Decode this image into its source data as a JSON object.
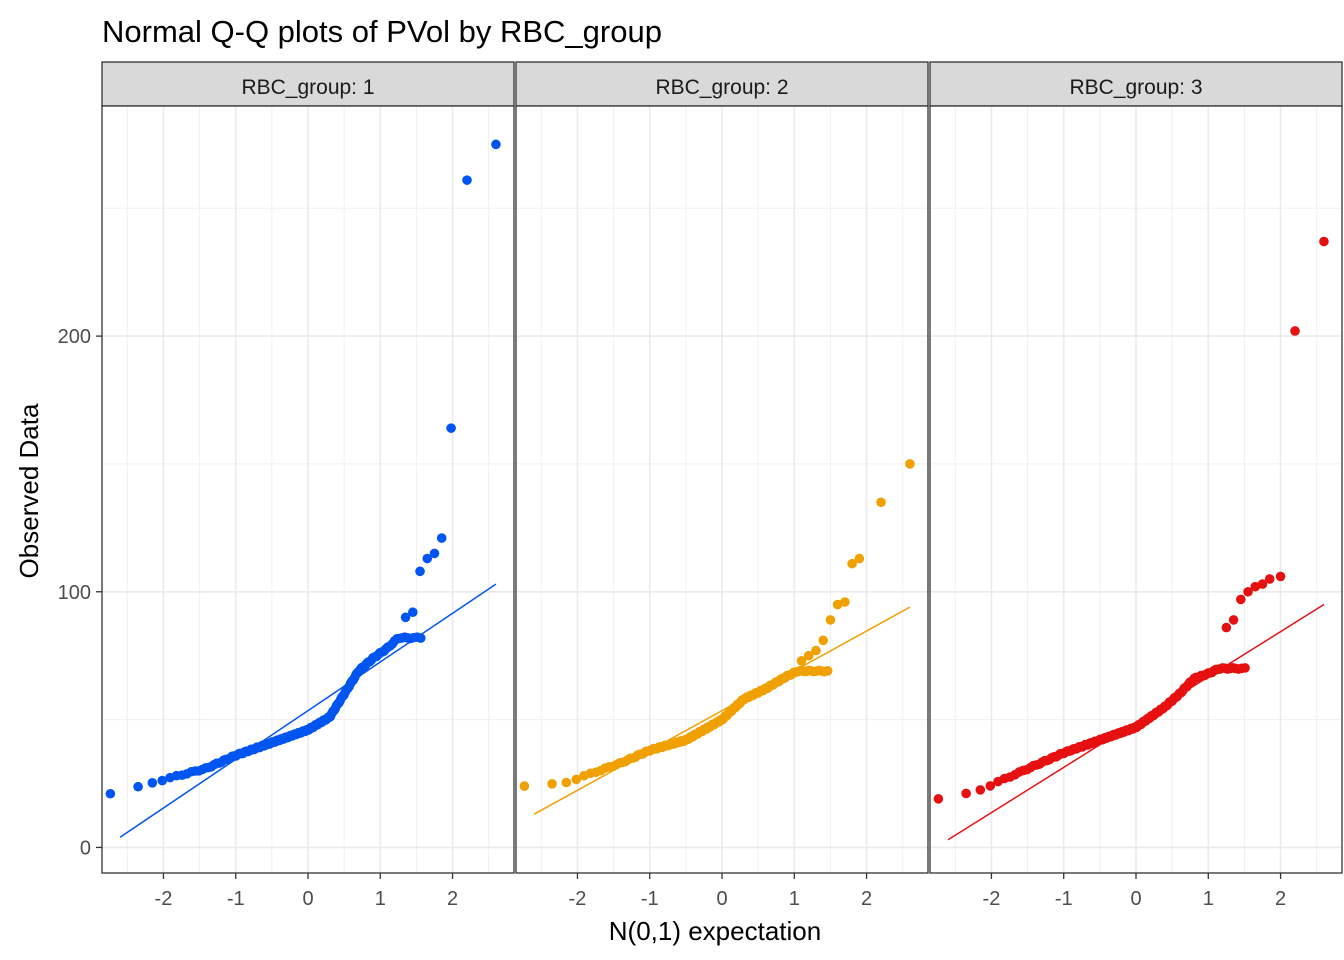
{
  "chart_data": {
    "type": "scatter",
    "title": "Normal Q-Q plots of PVol by RBC_group",
    "xlabel": "N(0,1) expectation",
    "ylabel": "Observed Data",
    "xlim": [
      -2.85,
      2.85
    ],
    "ylim": [
      -10,
      290
    ],
    "x_ticks": [
      -2,
      -1,
      0,
      1,
      2
    ],
    "x_tick_labels": [
      "-2",
      "-1",
      "0",
      "1",
      "2"
    ],
    "y_ticks": [
      0,
      100,
      200
    ],
    "y_tick_labels": [
      "0",
      "100",
      "200"
    ],
    "grid": true,
    "legend": "none",
    "facets": [
      {
        "strip_label": "RBC_group: 1",
        "color": "#0055f0",
        "n_points": 160,
        "ref_line": {
          "x": [
            -2.6,
            2.6
          ],
          "y": [
            4,
            103
          ]
        },
        "curve": [
          [
            -2.6,
            21
          ],
          [
            -2.2,
            25
          ],
          [
            -1.8,
            28
          ],
          [
            -1.4,
            31
          ],
          [
            -1.0,
            36
          ],
          [
            -0.5,
            41
          ],
          [
            0.0,
            46
          ],
          [
            0.3,
            51
          ],
          [
            0.5,
            60
          ],
          [
            0.7,
            69
          ],
          [
            0.9,
            74
          ],
          [
            1.1,
            78
          ],
          [
            1.25,
            82
          ]
        ],
        "extreme_points": [
          [
            1.35,
            90
          ],
          [
            1.45,
            92
          ],
          [
            1.55,
            108
          ],
          [
            1.65,
            113
          ],
          [
            1.75,
            115
          ],
          [
            1.85,
            121
          ],
          [
            1.98,
            164
          ],
          [
            2.2,
            261
          ],
          [
            2.6,
            275
          ]
        ]
      },
      {
        "strip_label": "RBC_group: 2",
        "color": "#f0a000",
        "n_points": 160,
        "ref_line": {
          "x": [
            -2.6,
            2.6
          ],
          "y": [
            13,
            94
          ]
        },
        "curve": [
          [
            -2.6,
            24
          ],
          [
            -2.2,
            25
          ],
          [
            -1.8,
            29
          ],
          [
            -1.4,
            33
          ],
          [
            -1.0,
            38
          ],
          [
            -0.5,
            42
          ],
          [
            0.0,
            50
          ],
          [
            0.3,
            58
          ],
          [
            0.6,
            62
          ],
          [
            0.9,
            67
          ],
          [
            1.05,
            69
          ]
        ],
        "extreme_points": [
          [
            1.1,
            73
          ],
          [
            1.2,
            75
          ],
          [
            1.3,
            77
          ],
          [
            1.4,
            81
          ],
          [
            1.5,
            89
          ],
          [
            1.6,
            95
          ],
          [
            1.7,
            96
          ],
          [
            1.8,
            111
          ],
          [
            1.9,
            113
          ],
          [
            2.2,
            135
          ],
          [
            2.6,
            150
          ]
        ]
      },
      {
        "strip_label": "RBC_group: 3",
        "color": "#e61010",
        "n_points": 160,
        "ref_line": {
          "x": [
            -2.6,
            2.6
          ],
          "y": [
            3,
            95
          ]
        },
        "curve": [
          [
            -2.6,
            19
          ],
          [
            -2.2,
            22
          ],
          [
            -1.8,
            27
          ],
          [
            -1.4,
            32
          ],
          [
            -1.0,
            37
          ],
          [
            -0.5,
            42
          ],
          [
            0.0,
            47
          ],
          [
            0.4,
            55
          ],
          [
            0.6,
            60
          ],
          [
            0.8,
            66
          ],
          [
            1.0,
            68
          ],
          [
            1.15,
            70
          ]
        ],
        "extreme_points": [
          [
            1.25,
            86
          ],
          [
            1.35,
            89
          ],
          [
            1.45,
            97
          ],
          [
            1.55,
            100
          ],
          [
            1.65,
            102
          ],
          [
            1.75,
            103
          ],
          [
            1.85,
            105
          ],
          [
            2.0,
            106
          ],
          [
            2.2,
            202
          ],
          [
            2.6,
            237
          ]
        ]
      }
    ]
  }
}
